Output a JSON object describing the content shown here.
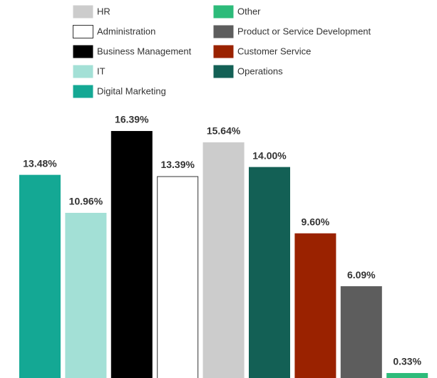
{
  "chart_data": {
    "type": "bar",
    "categories": [
      "Digital Marketing",
      "IT",
      "Business Management",
      "Administration",
      "HR",
      "Operations",
      "Customer Service",
      "Product or Service Development",
      "Other"
    ],
    "values": [
      13.48,
      10.96,
      16.39,
      13.39,
      15.64,
      14.0,
      9.6,
      6.09,
      0.33
    ],
    "value_labels": [
      "13.48%",
      "10.96%",
      "16.39%",
      "13.39%",
      "15.64%",
      "14.00%",
      "9.60%",
      "6.09%",
      "0.33%"
    ],
    "colors": [
      "#14a894",
      "#a3e0d6",
      "#000000",
      "#ffffff",
      "#cccccc",
      "#136055",
      "#9a2200",
      "#5d5d5d",
      "#2dbb7a"
    ]
  }
}
